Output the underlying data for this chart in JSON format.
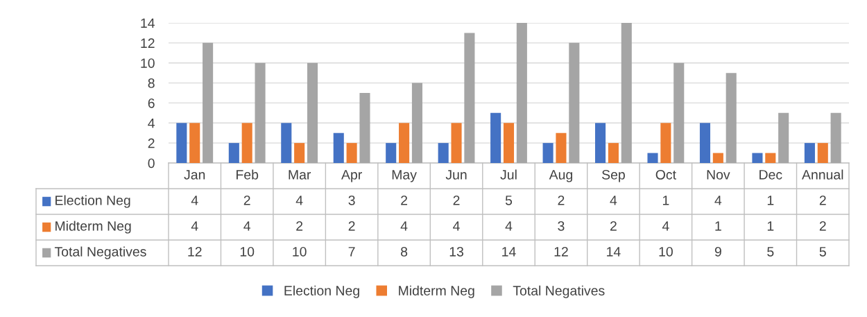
{
  "chart_data": {
    "type": "bar",
    "categories": [
      "Jan",
      "Feb",
      "Mar",
      "Apr",
      "May",
      "Jun",
      "Jul",
      "Aug",
      "Sep",
      "Oct",
      "Nov",
      "Dec",
      "Annual"
    ],
    "series": [
      {
        "name": "Election Neg",
        "color": "#4472c4",
        "values": [
          4,
          2,
          4,
          3,
          2,
          2,
          5,
          2,
          4,
          1,
          4,
          1,
          2
        ]
      },
      {
        "name": "Midterm Neg",
        "color": "#ed7d31",
        "values": [
          4,
          4,
          2,
          2,
          4,
          4,
          4,
          3,
          2,
          4,
          1,
          1,
          2
        ]
      },
      {
        "name": "Total Negatives",
        "color": "#a5a5a5",
        "values": [
          12,
          10,
          10,
          7,
          8,
          13,
          14,
          12,
          14,
          10,
          9,
          5,
          5
        ]
      }
    ],
    "ylim": [
      0,
      14
    ],
    "yticks": [
      0,
      2,
      4,
      6,
      8,
      10,
      12,
      14
    ],
    "grid": "y",
    "legend": "bottom",
    "data_labels": true
  }
}
